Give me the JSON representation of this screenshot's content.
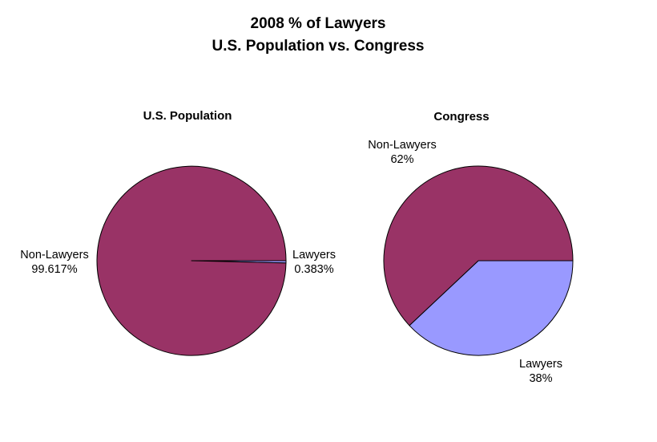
{
  "title_lines": [
    "2008 % of Lawyers",
    "U.S. Population vs. Congress"
  ],
  "colors": {
    "non_lawyers": "#993366",
    "lawyers": "#9999ff",
    "outline": "#000000"
  },
  "chart_data": [
    {
      "type": "pie",
      "title": "U.S. Population",
      "slices": [
        {
          "name": "Lawyers",
          "value": 0.383,
          "label": "0.383%"
        },
        {
          "name": "Non-Lawyers",
          "value": 99.617,
          "label": "99.617%"
        }
      ]
    },
    {
      "type": "pie",
      "title": "Congress",
      "slices": [
        {
          "name": "Lawyers",
          "value": 38,
          "label": "38%"
        },
        {
          "name": "Non-Lawyers",
          "value": 62,
          "label": "62%"
        }
      ]
    }
  ]
}
